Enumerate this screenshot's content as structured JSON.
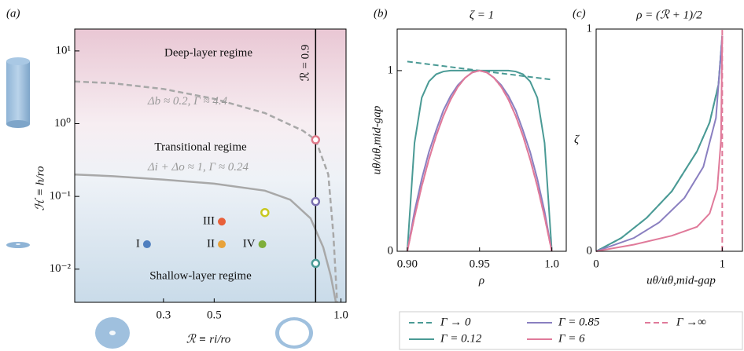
{
  "chart_data": [
    {
      "type": "scatter",
      "panel_label": "(a)",
      "xlabel": "ℛ ≡ ri/ro",
      "ylabel": "ℋ ≡ h/ro",
      "xlim": [
        -0.05,
        1.02
      ],
      "xticks": [
        0.3,
        0.5,
        {
          "value": 1,
          "label": "1.0"
        }
      ],
      "ylim": [
        0.0035,
        20
      ],
      "yscale": "log",
      "yticks": [
        {
          "value": 10,
          "label": "10¹"
        },
        {
          "value": 1,
          "label": "10⁰"
        },
        {
          "value": 0.1,
          "label": "10⁻¹"
        },
        {
          "value": 0.01,
          "label": "10⁻²"
        }
      ],
      "regions": [
        "Deep-layer regime",
        "Transitional regime",
        "Shallow-layer regime"
      ],
      "curves": [
        {
          "label": "Δb ≈ 0.2, Γ ≈ 4.4",
          "color": "#a8a8a8",
          "dashed": true,
          "x": [
            -0.05,
            0.1,
            0.3,
            0.5,
            0.7,
            0.85,
            0.9,
            0.95,
            0.97,
            0.985
          ],
          "values": [
            3.8,
            3.6,
            3.0,
            2.2,
            1.4,
            0.8,
            0.6,
            0.2,
            0.03,
            0.0035
          ]
        },
        {
          "label": "Δi + Δo ≈ 1, Γ ≈ 0.24",
          "color": "#a8a8a8",
          "dashed": false,
          "x": [
            -0.05,
            0.1,
            0.3,
            0.5,
            0.7,
            0.8,
            0.88,
            0.93,
            0.96,
            0.98
          ],
          "values": [
            0.2,
            0.19,
            0.17,
            0.15,
            0.12,
            0.09,
            0.05,
            0.02,
            0.008,
            0.0035
          ]
        }
      ],
      "vline": {
        "label": "ℛ = 0.9",
        "x": 0.9
      },
      "points": [
        {
          "label": "I",
          "color": "#4f7fbf",
          "x": 0.235,
          "value": 0.022
        },
        {
          "label": "II",
          "color": "#e8a23a",
          "x": 0.53,
          "value": 0.022
        },
        {
          "label": "III",
          "color": "#e8603a",
          "x": 0.53,
          "value": 0.045
        },
        {
          "label": "IV",
          "color": "#7fae3a",
          "x": 0.69,
          "value": 0.022
        }
      ],
      "open_points": [
        {
          "color": "#c8c820",
          "x": 0.7,
          "value": 0.06
        },
        {
          "color": "#e07a8a",
          "x": 0.9,
          "value": 0.6
        },
        {
          "color": "#7a6fb0",
          "x": 0.9,
          "value": 0.085
        },
        {
          "color": "#4a9a95",
          "x": 0.9,
          "value": 0.012
        }
      ]
    },
    {
      "type": "line",
      "panel_label": "(b)",
      "title": "ζ = 1",
      "xlabel": "ρ",
      "ylabel": "uθ/uθ,mid-gap",
      "xlim": [
        0.893,
        1.01
      ],
      "xticks": [
        {
          "value": 0.9,
          "label": "0.90"
        },
        {
          "value": 0.95,
          "label": "0.95"
        },
        {
          "value": 1,
          "label": "1.0"
        }
      ],
      "ylim": [
        0,
        1.23
      ],
      "yticks": [
        0,
        1
      ],
      "x": [
        0.9,
        0.905,
        0.91,
        0.915,
        0.92,
        0.925,
        0.93,
        0.935,
        0.94,
        0.945,
        0.95,
        0.955,
        0.96,
        0.965,
        0.97,
        0.975,
        0.98,
        0.985,
        0.99,
        0.995,
        1.0
      ],
      "series": [
        {
          "name": "Γ → 0",
          "color": "#4a9a95",
          "dashed": true,
          "values": [
            1.05,
            1.045,
            1.04,
            1.035,
            1.03,
            1.025,
            1.02,
            1.015,
            1.01,
            1.005,
            1.0,
            0.995,
            0.99,
            0.985,
            0.98,
            0.975,
            0.97,
            0.965,
            0.96,
            0.955,
            0.95
          ]
        },
        {
          "name": "Γ = 0.12",
          "color": "#4a9a95",
          "dashed": false,
          "values": [
            0,
            0.6,
            0.85,
            0.94,
            0.98,
            0.995,
            1.0,
            1.0,
            1.0,
            1.0,
            1.0,
            1.0,
            1.0,
            1.0,
            1.0,
            0.995,
            0.98,
            0.94,
            0.85,
            0.6,
            0
          ]
        },
        {
          "name": "Γ = 0.85",
          "color": "#8a7fc0",
          "dashed": false,
          "values": [
            0,
            0.22,
            0.4,
            0.55,
            0.67,
            0.78,
            0.86,
            0.92,
            0.96,
            0.99,
            1,
            0.99,
            0.96,
            0.92,
            0.86,
            0.78,
            0.67,
            0.55,
            0.4,
            0.22,
            0
          ]
        },
        {
          "name": "Γ = 6",
          "color": "#e07a9a",
          "dashed": false,
          "values": [
            0,
            0.19,
            0.36,
            0.51,
            0.64,
            0.75,
            0.84,
            0.91,
            0.96,
            0.99,
            1,
            0.99,
            0.96,
            0.91,
            0.84,
            0.75,
            0.64,
            0.51,
            0.36,
            0.19,
            0
          ]
        },
        {
          "name": "Γ →∞",
          "color": "#e07a9a",
          "dashed": true,
          "values": [
            0,
            0.19,
            0.36,
            0.51,
            0.64,
            0.75,
            0.84,
            0.91,
            0.96,
            0.99,
            1,
            0.99,
            0.96,
            0.91,
            0.84,
            0.75,
            0.64,
            0.51,
            0.36,
            0.19,
            0
          ]
        }
      ]
    },
    {
      "type": "line",
      "panel_label": "(c)",
      "title": "ρ = (ℛ + 1)/2",
      "xlabel": "uθ/uθ,mid-gap",
      "ylabel": "ζ",
      "xlim": [
        0,
        1.16
      ],
      "xticks": [
        0,
        1
      ],
      "ylim": [
        0,
        1
      ],
      "yticks": [
        0,
        1
      ],
      "series": [
        {
          "color": "#4a9a95",
          "dashed": true,
          "x": [
            0,
            0.2,
            0.4,
            0.6,
            0.8,
            0.9,
            0.97,
            1.0
          ],
          "values": [
            0,
            0.06,
            0.15,
            0.27,
            0.45,
            0.58,
            0.75,
            0.97
          ]
        },
        {
          "color": "#4a9a95",
          "dashed": false,
          "x": [
            0,
            0.2,
            0.4,
            0.6,
            0.8,
            0.9,
            0.97,
            1.0
          ],
          "values": [
            0,
            0.06,
            0.15,
            0.27,
            0.45,
            0.58,
            0.75,
            0.97
          ]
        },
        {
          "color": "#8a7fc0",
          "dashed": false,
          "x": [
            0,
            0.3,
            0.5,
            0.7,
            0.85,
            0.95,
            1.0
          ],
          "values": [
            0,
            0.06,
            0.13,
            0.24,
            0.38,
            0.6,
            0.97
          ]
        },
        {
          "color": "#e07a9a",
          "dashed": false,
          "x": [
            0,
            0.3,
            0.6,
            0.8,
            0.9,
            0.96,
            0.99,
            1.0
          ],
          "values": [
            0,
            0.03,
            0.07,
            0.11,
            0.17,
            0.28,
            0.5,
            0.97
          ]
        },
        {
          "color": "#e07a9a",
          "dashed": true,
          "x": [
            1,
            1
          ],
          "values": [
            0,
            1
          ]
        }
      ]
    }
  ]
}
